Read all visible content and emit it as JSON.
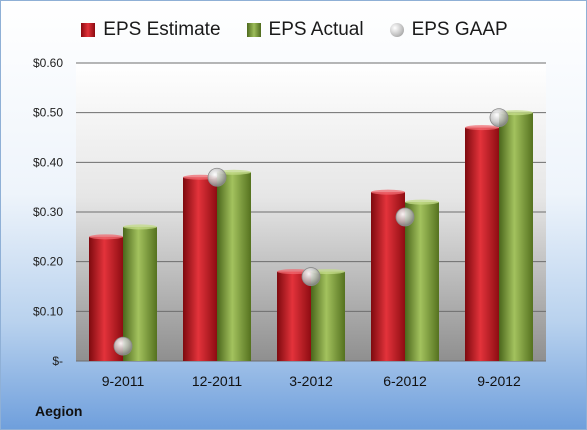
{
  "chart_data": {
    "type": "bar",
    "title": "",
    "xlabel": "",
    "ylabel": "",
    "categories": [
      "9-2011",
      "12-2011",
      "3-2012",
      "6-2012",
      "9-2012"
    ],
    "series": [
      {
        "name": "EPS Estimate",
        "kind": "bar",
        "color": "#c8101a",
        "values": [
          0.25,
          0.37,
          0.18,
          0.34,
          0.47
        ]
      },
      {
        "name": "EPS Actual",
        "kind": "bar",
        "color": "#7a9a3a",
        "values": [
          0.27,
          0.38,
          0.18,
          0.32,
          0.5
        ]
      },
      {
        "name": "EPS GAAP",
        "kind": "marker",
        "color": "#b8b8b8",
        "values": [
          0.03,
          0.37,
          0.17,
          0.29,
          0.49
        ]
      }
    ],
    "ylim": [
      0,
      0.6
    ],
    "yticks": [
      0,
      0.1,
      0.2,
      0.3,
      0.4,
      0.5,
      0.6
    ],
    "ytick_labels": [
      "$-",
      "$0.10",
      "$0.20",
      "$0.30",
      "$0.40",
      "$0.50",
      "$0.60"
    ],
    "grid": true,
    "legend_position": "top"
  },
  "legend": {
    "estimate": "EPS Estimate",
    "actual": "EPS Actual",
    "gaap": "EPS GAAP"
  },
  "company": "Aegion"
}
